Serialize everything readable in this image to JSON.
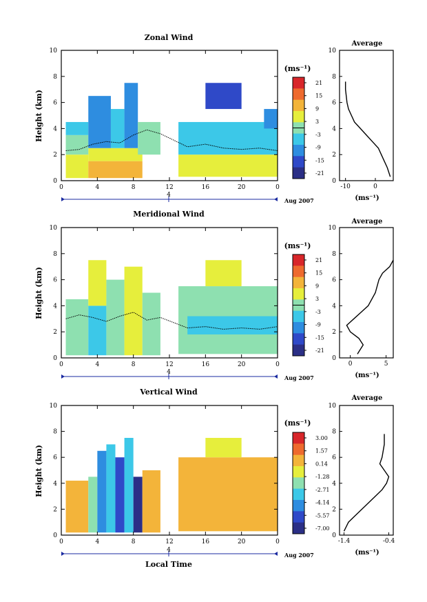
{
  "panels": [
    {
      "title": "Zonal Wind",
      "ylabel": "Height (km)",
      "xticks": [
        "0",
        "4",
        "8",
        "12",
        "16",
        "20",
        "0"
      ],
      "yticks": [
        "0",
        "2",
        "4",
        "6",
        "8",
        "10"
      ],
      "date_marker": "4",
      "date_label": "Aug 2007",
      "colorbar": {
        "unit": "(ms⁻¹)",
        "ticks": [
          "21",
          "15",
          "9",
          "3",
          "-3",
          "-9",
          "-15",
          "-21"
        ]
      },
      "avg": {
        "title": "Average",
        "xlabel": "(ms⁻¹)",
        "xticks": [
          "-10",
          "0"
        ],
        "yticks": [
          "0",
          "2",
          "4",
          "6",
          "8",
          "10"
        ]
      }
    },
    {
      "title": "Meridional Wind",
      "ylabel": "Height (km)",
      "xticks": [
        "0",
        "4",
        "8",
        "12",
        "16",
        "20",
        "0"
      ],
      "yticks": [
        "0",
        "2",
        "4",
        "6",
        "8",
        "10"
      ],
      "date_marker": "4",
      "date_label": "Aug 2007",
      "colorbar": {
        "unit": "(ms⁻¹)",
        "ticks": [
          "21",
          "15",
          "9",
          "3",
          "-3",
          "-9",
          "-15",
          "-21"
        ]
      },
      "avg": {
        "title": "Average",
        "xlabel": "(ms⁻¹)",
        "xticks": [
          "0",
          "5"
        ],
        "yticks": [
          "0",
          "2",
          "4",
          "6",
          "8",
          "10"
        ]
      }
    },
    {
      "title": "Vertical Wind",
      "ylabel": "Height (km)",
      "xticks": [
        "0",
        "4",
        "8",
        "12",
        "16",
        "20",
        "0"
      ],
      "yticks": [
        "0",
        "2",
        "4",
        "6",
        "8",
        "10"
      ],
      "date_marker": "4",
      "date_label": "Aug 2007",
      "xlabel": "Local Time",
      "colorbar": {
        "unit": "(ms⁻¹)",
        "ticks": [
          "3.00",
          "1.57",
          "0.14",
          "-1.28",
          "-2.71",
          "-4.14",
          "-5.57",
          "-7.00"
        ]
      },
      "avg": {
        "title": "Average",
        "xlabel": "(ms⁻¹)",
        "xticks": [
          "-1.4",
          "-0.4"
        ],
        "yticks": [
          "0",
          "2",
          "4",
          "6",
          "8",
          "10"
        ]
      }
    }
  ],
  "colors": {
    "scale": [
      "#2b2f86",
      "#2f49c8",
      "#2e8de0",
      "#3cc8e8",
      "#8ee0b0",
      "#e6ee3c",
      "#f3b43a",
      "#ee6a2e",
      "#d8262a"
    ]
  },
  "chart_data": [
    {
      "type": "heatmap",
      "title": "Zonal Wind",
      "xlabel": "",
      "ylabel": "Height (km)",
      "xlim": [
        0,
        24
      ],
      "ylim": [
        0,
        10
      ],
      "zlim": [
        -21,
        21
      ],
      "unit": "ms-1",
      "blocks": [
        {
          "x": [
            0.5,
            3
          ],
          "y": [
            0.2,
            2.0
          ],
          "v": 6
        },
        {
          "x": [
            3,
            9
          ],
          "y": [
            0.2,
            1.5
          ],
          "v": 10
        },
        {
          "x": [
            3,
            9
          ],
          "y": [
            1.5,
            2.5
          ],
          "v": 6
        },
        {
          "x": [
            0.5,
            3
          ],
          "y": [
            2.0,
            3.5
          ],
          "v": 2
        },
        {
          "x": [
            0.5,
            3
          ],
          "y": [
            3.5,
            4.5
          ],
          "v": -6
        },
        {
          "x": [
            3,
            5.5
          ],
          "y": [
            2.5,
            6.5
          ],
          "v": -9
        },
        {
          "x": [
            5.5,
            7
          ],
          "y": [
            2.5,
            5.5
          ],
          "v": -4
        },
        {
          "x": [
            7,
            8.5
          ],
          "y": [
            2.5,
            7.5
          ],
          "v": -8
        },
        {
          "x": [
            8.5,
            11
          ],
          "y": [
            2.0,
            4.5
          ],
          "v": 2
        },
        {
          "x": [
            13,
            24
          ],
          "y": [
            0.3,
            2.0
          ],
          "v": 5
        },
        {
          "x": [
            13,
            24
          ],
          "y": [
            2.0,
            4.5
          ],
          "v": -3
        },
        {
          "x": [
            16,
            20
          ],
          "y": [
            5.5,
            7.5
          ],
          "v": -15
        },
        {
          "x": [
            22.5,
            24
          ],
          "y": [
            4.0,
            5.5
          ],
          "v": -10
        }
      ],
      "zero_contour": {
        "x": [
          0.5,
          2,
          3.5,
          5,
          6.5,
          8,
          9.5,
          11,
          14,
          16,
          18,
          20,
          22,
          24
        ],
        "y": [
          2.3,
          2.4,
          2.8,
          3.0,
          2.9,
          3.5,
          3.9,
          3.6,
          2.6,
          2.8,
          2.5,
          2.4,
          2.5,
          2.3
        ]
      }
    },
    {
      "type": "line",
      "title": "Average",
      "xlabel": "(ms-1)",
      "ylabel": "",
      "xlim": [
        -12,
        6
      ],
      "ylim": [
        0,
        10
      ],
      "x": [
        5,
        4,
        3,
        2,
        1,
        -1,
        -3,
        -5,
        -7,
        -8,
        -9,
        -9.5,
        -10,
        -10
      ],
      "y": [
        0.3,
        1.0,
        1.5,
        2.0,
        2.5,
        3.0,
        3.5,
        4.0,
        4.5,
        5.0,
        5.5,
        6.0,
        7.0,
        7.6
      ]
    },
    {
      "type": "heatmap",
      "title": "Meridional Wind",
      "xlabel": "",
      "ylabel": "Height (km)",
      "xlim": [
        0,
        24
      ],
      "ylim": [
        0,
        10
      ],
      "zlim": [
        -21,
        21
      ],
      "unit": "ms-1",
      "blocks": [
        {
          "x": [
            0.5,
            3
          ],
          "y": [
            0.2,
            4.5
          ],
          "v": -2
        },
        {
          "x": [
            3,
            5
          ],
          "y": [
            0.2,
            4.0
          ],
          "v": -7
        },
        {
          "x": [
            3,
            5
          ],
          "y": [
            4.0,
            7.5
          ],
          "v": 4
        },
        {
          "x": [
            5,
            7
          ],
          "y": [
            0.2,
            6.0
          ],
          "v": 2
        },
        {
          "x": [
            7,
            9
          ],
          "y": [
            0.2,
            7.0
          ],
          "v": 5
        },
        {
          "x": [
            9,
            11
          ],
          "y": [
            0.2,
            5.0
          ],
          "v": 2
        },
        {
          "x": [
            13,
            24
          ],
          "y": [
            0.3,
            5.5
          ],
          "v": -1
        },
        {
          "x": [
            16,
            20
          ],
          "y": [
            5.5,
            7.5
          ],
          "v": 5
        },
        {
          "x": [
            14,
            24
          ],
          "y": [
            1.8,
            3.2
          ],
          "v": -5
        }
      ],
      "zero_contour": {
        "x": [
          0.5,
          2,
          3.5,
          5,
          6.5,
          8,
          9.5,
          11,
          14,
          16,
          18,
          20,
          22,
          24
        ],
        "y": [
          3.0,
          3.3,
          3.1,
          2.8,
          3.2,
          3.5,
          2.9,
          3.1,
          2.3,
          2.4,
          2.2,
          2.3,
          2.2,
          2.4
        ]
      }
    },
    {
      "type": "line",
      "title": "Average",
      "xlabel": "(ms-1)",
      "ylabel": "",
      "xlim": [
        -1.5,
        6
      ],
      "ylim": [
        0,
        10
      ],
      "x": [
        1,
        1.8,
        1.2,
        0,
        -0.5,
        0.5,
        1.5,
        2.5,
        3.5,
        4,
        4.5,
        5.5,
        6
      ],
      "y": [
        0.3,
        1.0,
        1.5,
        2.0,
        2.5,
        3.0,
        3.5,
        4.0,
        5.0,
        6.0,
        6.5,
        7.0,
        7.5
      ]
    },
    {
      "type": "heatmap",
      "title": "Vertical Wind",
      "xlabel": "Local Time",
      "ylabel": "Height (km)",
      "xlim": [
        0,
        24
      ],
      "ylim": [
        0,
        10
      ],
      "zlim": [
        -7,
        3
      ],
      "unit": "ms-1",
      "blocks": [
        {
          "x": [
            0.5,
            3
          ],
          "y": [
            0.2,
            4.2
          ],
          "v": 0.3
        },
        {
          "x": [
            3,
            4
          ],
          "y": [
            0.2,
            4.5
          ],
          "v": -1.8
        },
        {
          "x": [
            4,
            5
          ],
          "y": [
            0.2,
            6.5
          ],
          "v": -4.2
        },
        {
          "x": [
            5,
            6
          ],
          "y": [
            0.2,
            7.0
          ],
          "v": -2.8
        },
        {
          "x": [
            6,
            7
          ],
          "y": [
            0.2,
            6.0
          ],
          "v": -4.8
        },
        {
          "x": [
            7,
            8
          ],
          "y": [
            0.2,
            7.5
          ],
          "v": -3.5
        },
        {
          "x": [
            8,
            9
          ],
          "y": [
            0.2,
            4.5
          ],
          "v": -6.8
        },
        {
          "x": [
            9,
            11
          ],
          "y": [
            0.2,
            5.0
          ],
          "v": 0.3
        },
        {
          "x": [
            13,
            24
          ],
          "y": [
            0.3,
            6.0
          ],
          "v": 0.2
        },
        {
          "x": [
            16,
            20
          ],
          "y": [
            6.0,
            7.5
          ],
          "v": -0.9
        }
      ]
    },
    {
      "type": "line",
      "title": "Average",
      "xlabel": "(ms-1)",
      "ylabel": "",
      "xlim": [
        -1.5,
        -0.3
      ],
      "ylim": [
        0,
        10
      ],
      "x": [
        -1.4,
        -1.3,
        -1.15,
        -1.0,
        -0.85,
        -0.7,
        -0.55,
        -0.45,
        -0.4,
        -0.5,
        -0.6,
        -0.55,
        -0.5,
        -0.5
      ],
      "y": [
        0.3,
        1.0,
        1.5,
        2.0,
        2.5,
        3.0,
        3.5,
        4.0,
        4.5,
        5.0,
        5.5,
        6.0,
        7.0,
        7.8
      ]
    }
  ]
}
